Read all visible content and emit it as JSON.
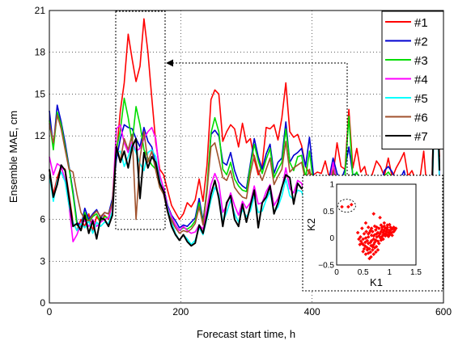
{
  "chart_data": {
    "type": "line",
    "xlabel": "Forecast start time, h",
    "ylabel": "Ensemble MAE, cm",
    "xlim": [
      0,
      600
    ],
    "ylim": [
      0,
      21
    ],
    "xticks": [
      0,
      200,
      400,
      600
    ],
    "xtick_labels": [
      "0",
      "200",
      "400",
      "600"
    ],
    "yticks": [
      0,
      3,
      6,
      9,
      12,
      15,
      18,
      21
    ],
    "ytick_labels": [
      "0",
      "3",
      "6",
      "9",
      "12",
      "15",
      "18",
      "21"
    ],
    "grid": true,
    "legend_position": "top-right",
    "x": [
      0,
      6,
      12,
      18,
      24,
      30,
      36,
      42,
      48,
      54,
      60,
      66,
      72,
      78,
      84,
      90,
      96,
      102,
      108,
      114,
      120,
      126,
      132,
      138,
      144,
      150,
      156,
      162,
      168,
      174,
      180,
      186,
      192,
      198,
      204,
      210,
      216,
      222,
      228,
      234,
      240,
      246,
      252,
      258,
      264,
      270,
      276,
      282,
      288,
      294,
      300,
      306,
      312,
      318,
      324,
      330,
      336,
      342,
      348,
      354,
      360,
      366,
      372,
      378,
      384,
      390,
      396,
      402,
      408,
      414,
      420,
      426,
      432,
      438,
      444,
      450,
      456,
      462,
      468,
      474,
      480,
      486,
      492,
      498,
      504,
      510,
      516,
      522,
      528,
      534,
      540,
      546,
      552,
      558,
      564,
      570,
      576,
      582,
      588,
      594
    ],
    "series": [
      {
        "name": "#1",
        "color": "#ff0000",
        "values": [
          9.5,
          7.8,
          9.0,
          9.8,
          9.6,
          7.8,
          5.8,
          5.2,
          6.0,
          5.5,
          6.4,
          5.2,
          6.2,
          5.8,
          6.3,
          6.0,
          7.2,
          10.6,
          13.8,
          15.8,
          19.3,
          17.5,
          15.9,
          17.0,
          20.4,
          18.0,
          14.7,
          11.5,
          9.6,
          9.2,
          8.1,
          7.0,
          6.5,
          6.0,
          6.4,
          7.2,
          6.9,
          7.4,
          8.9,
          7.3,
          9.9,
          14.6,
          15.3,
          15.0,
          11.6,
          12.3,
          12.8,
          12.5,
          11.2,
          12.9,
          11.5,
          11.8,
          10.3,
          9.2,
          9.9,
          12.6,
          12.5,
          12.8,
          11.7,
          13.3,
          15.8,
          12.3,
          11.9,
          12.1,
          11.3,
          9.8,
          9.3,
          9.2,
          9.4,
          9.3,
          10.2,
          9.0,
          9.2,
          11.5,
          9.8,
          9.6,
          13.9,
          9.7,
          11.1,
          9.4,
          9.8,
          8.5,
          9.3,
          10.2,
          9.8,
          9.1,
          10.4,
          9.0,
          9.7,
          10.2,
          10.8,
          9.1,
          9.5,
          8.8,
          8.9,
          10.9,
          7.4,
          7.9,
          18.8,
          10.5
        ]
      },
      {
        "name": "#2",
        "color": "#0000d0",
        "values": [
          13.8,
          11.2,
          14.2,
          13.0,
          11.5,
          9.8,
          8.0,
          5.8,
          5.5,
          6.8,
          6.0,
          6.4,
          6.7,
          6.1,
          6.5,
          6.4,
          7.5,
          10.3,
          11.8,
          12.8,
          12.6,
          12.5,
          11.8,
          11.2,
          12.6,
          11.6,
          11.2,
          9.9,
          8.5,
          8.3,
          7.0,
          6.3,
          5.9,
          5.4,
          5.6,
          5.5,
          5.8,
          6.1,
          7.5,
          5.9,
          8.1,
          12.1,
          12.4,
          12.0,
          10.1,
          9.9,
          10.8,
          9.5,
          8.7,
          8.4,
          8.2,
          10.0,
          11.8,
          10.5,
          9.6,
          10.7,
          11.4,
          9.3,
          10.1,
          10.4,
          13.0,
          10.1,
          10.6,
          10.8,
          11.1,
          9.8,
          11.9,
          9.2,
          8.1,
          8.3,
          8.8,
          9.0,
          10.4,
          9.3,
          8.8,
          9.6,
          11.2,
          9.2,
          9.3,
          9.0,
          9.0,
          8.8,
          8.8,
          8.9,
          8.3,
          9.5,
          9.8,
          9.4,
          8.7,
          8.9,
          9.5,
          8.2,
          8.7,
          8.3,
          8.5,
          8.8,
          7.2,
          7.7,
          17.5,
          10.0
        ]
      },
      {
        "name": "#3",
        "color": "#00dd00",
        "values": [
          13.1,
          11.0,
          13.7,
          12.8,
          11.2,
          9.7,
          7.8,
          5.6,
          5.3,
          6.5,
          5.8,
          6.2,
          6.4,
          5.8,
          6.2,
          6.1,
          7.3,
          11.0,
          12.4,
          14.7,
          13.3,
          11.5,
          14.1,
          12.8,
          11.0,
          10.4,
          9.9,
          9.6,
          8.3,
          7.9,
          6.7,
          6.0,
          5.6,
          5.2,
          5.4,
          5.3,
          5.5,
          5.9,
          7.2,
          5.7,
          8.3,
          12.2,
          13.3,
          12.3,
          9.6,
          9.2,
          10.1,
          8.9,
          8.4,
          8.1,
          8.0,
          9.8,
          11.4,
          10.2,
          9.3,
          10.3,
          11.1,
          9.0,
          9.6,
          10.1,
          12.5,
          10.1,
          9.5,
          10.5,
          10.6,
          9.0,
          10.9,
          8.6,
          7.7,
          7.9,
          8.5,
          8.6,
          10.0,
          8.9,
          8.4,
          9.2,
          13.4,
          9.0,
          9.4,
          8.6,
          8.6,
          8.5,
          8.4,
          8.5,
          8.0,
          9.1,
          9.4,
          9.0,
          8.4,
          8.6,
          9.1,
          7.8,
          8.3,
          8.0,
          8.1,
          8.4,
          6.9,
          7.4,
          17.0,
          9.7
        ]
      },
      {
        "name": "#4",
        "color": "#ff00ff",
        "values": [
          10.5,
          9.2,
          10.0,
          9.8,
          8.8,
          7.0,
          4.4,
          4.9,
          5.7,
          5.9,
          5.5,
          6.0,
          5.5,
          5.8,
          6.0,
          6.1,
          7.2,
          12.5,
          12.8,
          11.5,
          10.8,
          11.6,
          10.9,
          11.1,
          11.8,
          12.3,
          12.6,
          11.8,
          9.2,
          8.2,
          6.9,
          6.2,
          5.6,
          5.2,
          5.5,
          5.2,
          5.0,
          5.1,
          5.6,
          5.3,
          6.8,
          8.5,
          9.3,
          8.6,
          6.5,
          7.0,
          7.9,
          7.0,
          6.3,
          7.3,
          6.8,
          7.2,
          8.4,
          7.1,
          7.2,
          8.0,
          8.5,
          7.0,
          7.5,
          8.2,
          9.7,
          8.2,
          7.9,
          8.8,
          8.6,
          7.6,
          8.2,
          7.9,
          7.0,
          7.5,
          7.8,
          8.3,
          10.1,
          8.6,
          8.5,
          8.8,
          9.0,
          8.8,
          8.5,
          8.5,
          8.1,
          8.3,
          8.1,
          8.4,
          8.0,
          8.6,
          8.7,
          8.4,
          8.1,
          8.3,
          8.6,
          7.6,
          8.0,
          7.8,
          7.9,
          8.2,
          6.6,
          7.0,
          16.8,
          9.2
        ]
      },
      {
        "name": "#5",
        "color": "#00ffff",
        "values": [
          9.2,
          7.3,
          8.8,
          9.4,
          8.7,
          7.0,
          5.8,
          5.2,
          5.7,
          5.4,
          5.9,
          5.0,
          5.8,
          5.5,
          5.8,
          5.7,
          6.6,
          10.8,
          10.9,
          9.8,
          10.5,
          11.4,
          10.8,
          10.0,
          9.5,
          10.8,
          11.0,
          10.5,
          8.8,
          7.9,
          6.8,
          5.8,
          5.0,
          4.5,
          4.9,
          4.6,
          4.2,
          4.5,
          5.4,
          4.9,
          6.1,
          7.4,
          8.3,
          7.8,
          5.8,
          6.5,
          7.4,
          6.4,
          5.8,
          6.7,
          6.2,
          6.6,
          7.7,
          6.5,
          6.6,
          7.4,
          8.0,
          6.5,
          6.9,
          7.7,
          8.9,
          7.7,
          7.4,
          8.1,
          8.0,
          7.1,
          7.6,
          7.4,
          6.5,
          7.0,
          7.3,
          7.8,
          9.2,
          8.1,
          7.9,
          8.3,
          8.5,
          8.2,
          8.0,
          8.0,
          7.6,
          7.8,
          7.6,
          7.9,
          7.5,
          8.1,
          8.2,
          7.9,
          7.6,
          7.8,
          8.1,
          7.1,
          7.5,
          7.3,
          7.4,
          7.7,
          6.2,
          6.6,
          16.3,
          8.7
        ]
      },
      {
        "name": "#6",
        "color": "#a0522d",
        "values": [
          12.9,
          11.5,
          13.5,
          12.5,
          11.0,
          9.6,
          9.4,
          7.8,
          6.5,
          6.0,
          5.9,
          6.3,
          6.6,
          6.2,
          6.5,
          6.4,
          7.2,
          11.3,
          10.2,
          11.8,
          11.0,
          12.1,
          6.0,
          10.4,
          12.3,
          10.1,
          10.9,
          9.5,
          8.3,
          7.8,
          6.5,
          5.9,
          5.4,
          5.0,
          5.2,
          5.1,
          5.3,
          5.7,
          6.9,
          5.6,
          8.0,
          11.2,
          11.5,
          10.3,
          9.0,
          8.8,
          9.5,
          8.3,
          7.9,
          7.6,
          7.5,
          9.3,
          10.6,
          9.5,
          8.8,
          9.6,
          10.4,
          8.5,
          9.1,
          9.6,
          11.6,
          9.4,
          9.7,
          9.9,
          10.1,
          8.7,
          9.6,
          8.2,
          7.3,
          7.5,
          8.0,
          8.2,
          9.5,
          8.6,
          8.1,
          8.8,
          9.2,
          8.7,
          8.6,
          8.4,
          8.3,
          8.2,
          8.1,
          8.3,
          7.8,
          8.7,
          9.0,
          8.6,
          8.1,
          8.3,
          8.7,
          7.5,
          8.0,
          7.7,
          7.8,
          8.1,
          6.7,
          7.2,
          18.5,
          10.0
        ]
      },
      {
        "name": "#7",
        "color": "#000000",
        "values": [
          9.6,
          7.6,
          8.5,
          9.9,
          9.5,
          7.5,
          5.5,
          5.7,
          5.2,
          6.3,
          5.0,
          5.9,
          4.6,
          6.1,
          6.0,
          5.5,
          6.3,
          11.2,
          10.1,
          10.9,
          9.7,
          11.2,
          11.8,
          7.5,
          10.8,
          9.7,
          10.5,
          10.1,
          8.6,
          8.0,
          6.6,
          5.5,
          4.9,
          4.5,
          4.9,
          4.4,
          4.1,
          4.3,
          5.6,
          5.0,
          6.3,
          7.8,
          8.8,
          7.5,
          5.5,
          7.2,
          7.7,
          6.0,
          5.5,
          7.1,
          5.8,
          7.0,
          8.1,
          5.4,
          7.2,
          7.6,
          8.4,
          6.4,
          7.2,
          8.3,
          9.2,
          9.0,
          7.1,
          8.6,
          8.2,
          8.6,
          8.7,
          8.8,
          8.1,
          7.8,
          8.3,
          7.5,
          8.5,
          8.7,
          8.2,
          8.6,
          9.0,
          8.3,
          8.1,
          8.2,
          8.0,
          7.9,
          8.3,
          8.0,
          8.2,
          8.1,
          7.9,
          8.1,
          7.8,
          8.0,
          8.3,
          7.6,
          7.8,
          7.6,
          7.7,
          7.9,
          6.3,
          6.8,
          19.0,
          9.5
        ]
      }
    ],
    "inset": {
      "type": "scatter",
      "xlabel": "K1",
      "ylabel": "K2",
      "xlim": [
        0,
        1.5
      ],
      "ylim": [
        -0.5,
        1
      ],
      "xticks": [
        0,
        0.5,
        1,
        1.5
      ],
      "xtick_labels": [
        "0",
        "0.5",
        "1",
        "1.5"
      ],
      "yticks": [
        -0.5,
        0,
        0.5,
        1
      ],
      "ytick_labels": [
        "−0.5",
        "0",
        "0.5",
        "1"
      ],
      "marker_color": "#ff0000",
      "points": [
        [
          0.1,
          0.58
        ],
        [
          0.22,
          0.58
        ],
        [
          0.28,
          0.62
        ],
        [
          0.55,
          0.28
        ],
        [
          0.7,
          0.45
        ],
        [
          0.48,
          0.18
        ],
        [
          0.82,
          0.38
        ],
        [
          0.6,
          0.08
        ],
        [
          0.9,
          0.22
        ],
        [
          1.0,
          0.25
        ],
        [
          1.08,
          0.12
        ],
        [
          1.05,
          0.05
        ],
        [
          0.4,
          0.1
        ],
        [
          0.45,
          0.02
        ],
        [
          0.5,
          -0.02
        ],
        [
          0.52,
          0.08
        ],
        [
          0.55,
          0.0
        ],
        [
          0.58,
          -0.05
        ],
        [
          0.6,
          0.02
        ],
        [
          0.62,
          0.1
        ],
        [
          0.64,
          -0.08
        ],
        [
          0.66,
          0.05
        ],
        [
          0.68,
          0.12
        ],
        [
          0.7,
          -0.02
        ],
        [
          0.72,
          0.06
        ],
        [
          0.74,
          0.15
        ],
        [
          0.76,
          0.02
        ],
        [
          0.78,
          0.1
        ],
        [
          0.8,
          0.18
        ],
        [
          0.82,
          0.08
        ],
        [
          0.84,
          0.12
        ],
        [
          0.86,
          0.16
        ],
        [
          0.88,
          0.1
        ],
        [
          0.9,
          0.14
        ],
        [
          0.92,
          0.18
        ],
        [
          0.94,
          0.12
        ],
        [
          0.96,
          0.16
        ],
        [
          0.98,
          0.1
        ],
        [
          1.0,
          0.14
        ],
        [
          1.02,
          0.2
        ],
        [
          1.04,
          0.16
        ],
        [
          1.06,
          0.18
        ],
        [
          1.1,
          0.15
        ],
        [
          0.46,
          -0.06
        ],
        [
          0.5,
          -0.12
        ],
        [
          0.54,
          -0.15
        ],
        [
          0.58,
          -0.18
        ],
        [
          0.6,
          -0.1
        ],
        [
          0.62,
          -0.2
        ],
        [
          0.65,
          -0.14
        ],
        [
          0.68,
          -0.22
        ],
        [
          0.7,
          -0.12
        ],
        [
          0.72,
          -0.08
        ],
        [
          0.75,
          -0.16
        ],
        [
          0.78,
          -0.06
        ],
        [
          0.8,
          -0.1
        ],
        [
          0.83,
          0.0
        ],
        [
          0.86,
          0.03
        ],
        [
          0.88,
          -0.02
        ],
        [
          0.92,
          0.04
        ],
        [
          0.95,
          0.06
        ],
        [
          0.98,
          0.03
        ],
        [
          0.5,
          -0.25
        ],
        [
          0.55,
          -0.3
        ],
        [
          0.6,
          -0.28
        ],
        [
          0.65,
          -0.35
        ],
        [
          0.7,
          -0.3
        ],
        [
          0.74,
          -0.26
        ],
        [
          0.62,
          -0.38
        ],
        [
          0.78,
          -0.22
        ],
        [
          0.58,
          -0.22
        ],
        [
          0.52,
          -0.2
        ],
        [
          0.44,
          -0.12
        ],
        [
          0.42,
          -0.02
        ],
        [
          0.66,
          0.18
        ],
        [
          0.72,
          0.22
        ],
        [
          0.76,
          0.2
        ],
        [
          0.84,
          0.24
        ],
        [
          0.9,
          0.28
        ],
        [
          0.96,
          0.24
        ],
        [
          1.02,
          0.1
        ],
        [
          1.08,
          0.2
        ],
        [
          1.12,
          0.18
        ],
        [
          0.66,
          -0.05
        ],
        [
          0.7,
          0.04
        ],
        [
          0.74,
          -0.04
        ],
        [
          0.76,
          0.08
        ],
        [
          0.8,
          0.04
        ],
        [
          0.84,
          -0.04
        ],
        [
          0.86,
          0.2
        ],
        [
          0.88,
          0.06
        ],
        [
          0.92,
          0.08
        ],
        [
          0.96,
          0.2
        ],
        [
          1.0,
          0.06
        ],
        [
          1.04,
          0.1
        ],
        [
          0.64,
          0.14
        ],
        [
          0.6,
          0.2
        ],
        [
          0.56,
          0.12
        ],
        [
          0.54,
          -0.08
        ],
        [
          0.48,
          -0.1
        ],
        [
          0.64,
          -0.26
        ],
        [
          0.68,
          -0.16
        ],
        [
          0.72,
          -0.18
        ]
      ]
    }
  }
}
